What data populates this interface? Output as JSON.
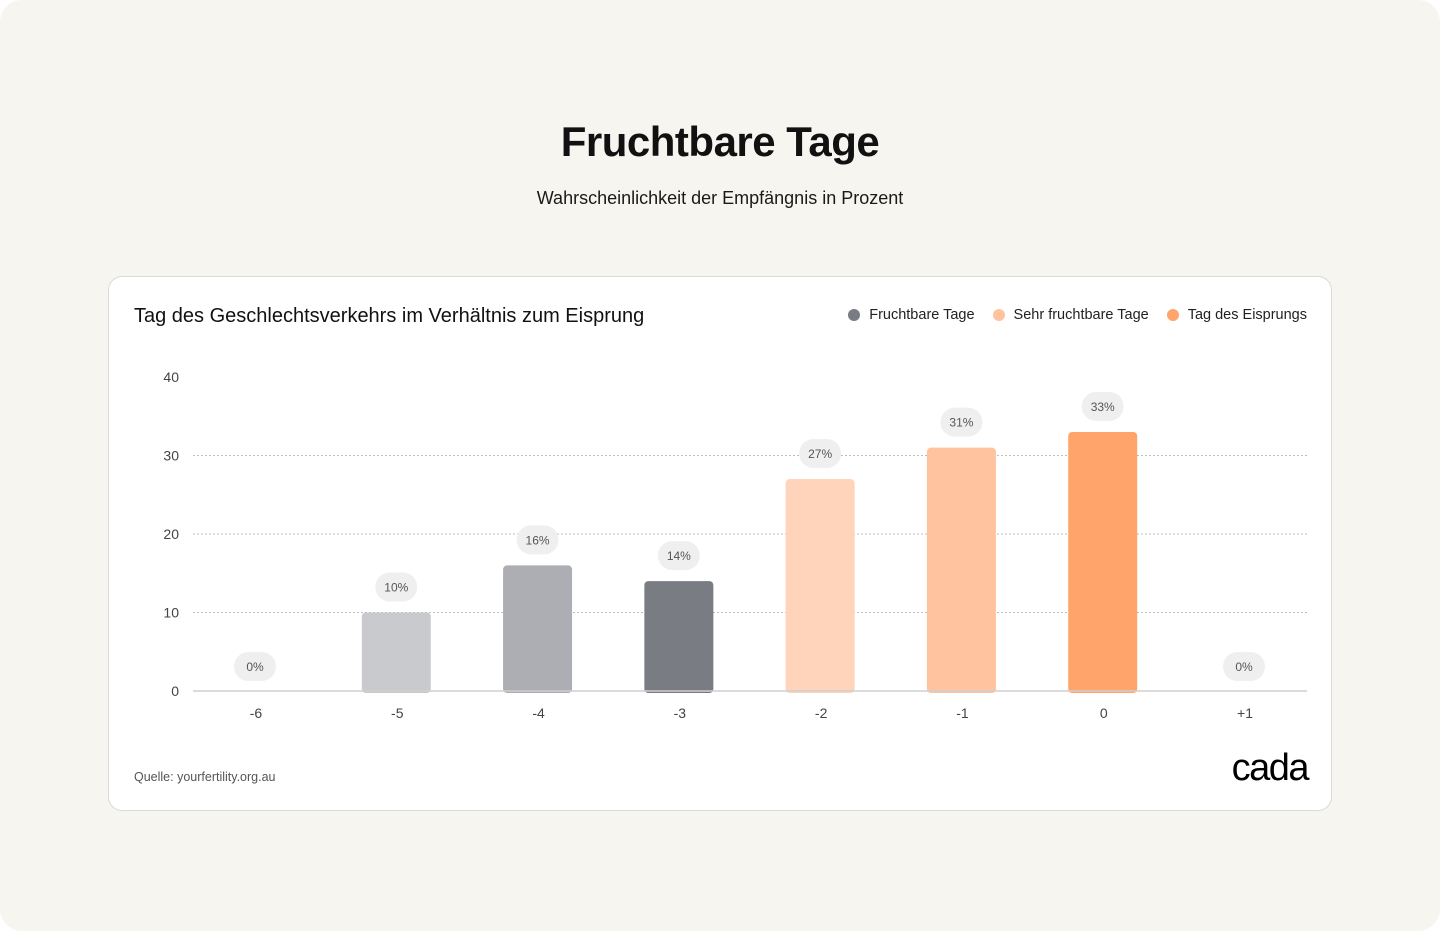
{
  "header": {
    "title": "Fruchtbare Tage",
    "subtitle": "Wahrscheinlichkeit der Empfängnis in Prozent"
  },
  "card": {
    "title": "Tag des Geschlechtsverkehrs im Verhältnis zum Eisprung",
    "source": "Quelle: yourfertility.org.au",
    "logo": "cada"
  },
  "legend": [
    {
      "label": "Fruchtbare Tage",
      "color": "#7a7c84"
    },
    {
      "label": "Sehr fruchtbare Tage",
      "color": "#ffc39f"
    },
    {
      "label": "Tag des Eisprungs",
      "color": "#ffa46a"
    }
  ],
  "chart_data": {
    "type": "bar",
    "title": "Tag des Geschlechtsverkehrs im Verhältnis zum Eisprung",
    "categories": [
      "-6",
      "-5",
      "-4",
      "-3",
      "-2",
      "-1",
      "0",
      "+1"
    ],
    "values": [
      0,
      10,
      16,
      14,
      27,
      31,
      33,
      0
    ],
    "data_labels": [
      "0%",
      "10%",
      "16%",
      "14%",
      "27%",
      "31%",
      "33%",
      "0%"
    ],
    "bar_colors": [
      "#c9cacd",
      "#c9cacd",
      "#acaeb3",
      "#7a7c84",
      "#ffd4bb",
      "#ffc39f",
      "#ffa46a",
      "#ffa46a"
    ],
    "ylim": [
      0,
      40
    ],
    "yticks": [
      0,
      10,
      20,
      30,
      40
    ],
    "grid": true,
    "legend_position": "top-right"
  }
}
